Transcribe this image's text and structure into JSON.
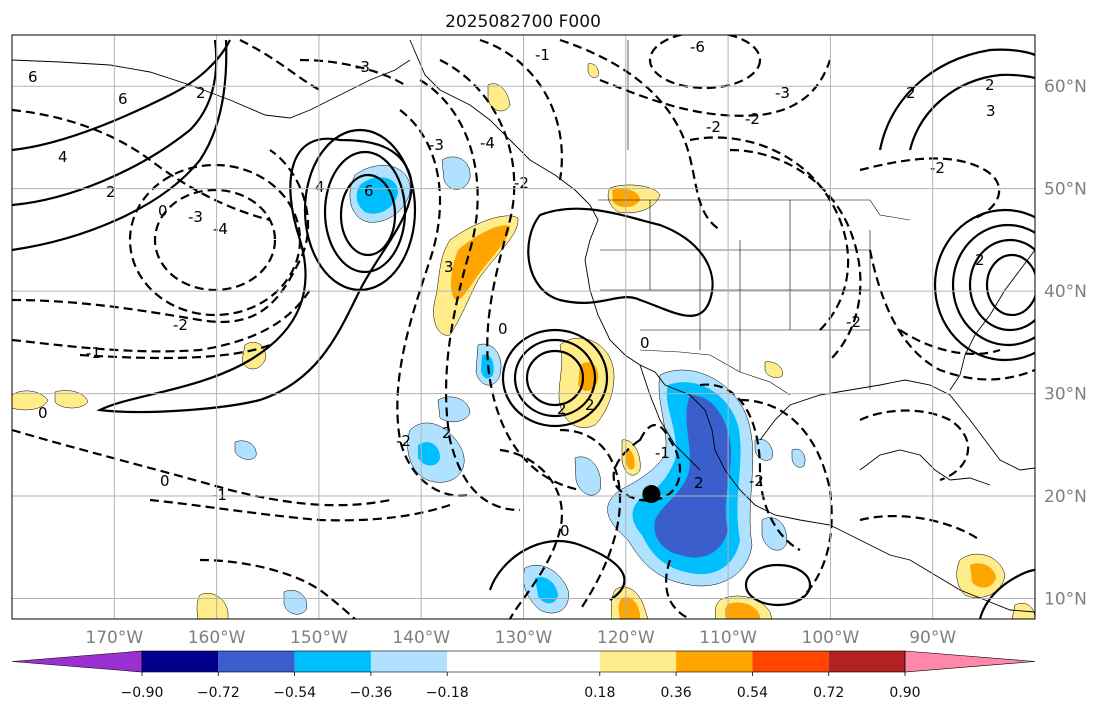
{
  "title": "2025082700 F000",
  "map": {
    "lon_min": -180,
    "lon_max": -80,
    "lat_min": 8,
    "lat_max": 65,
    "lat_ticks": [
      {
        "value": 60,
        "label": "60°N"
      },
      {
        "value": 50,
        "label": "50°N"
      },
      {
        "value": 40,
        "label": "40°N"
      },
      {
        "value": 30,
        "label": "30°N"
      },
      {
        "value": 20,
        "label": "20°N"
      },
      {
        "value": 10,
        "label": "10°N"
      }
    ],
    "lon_ticks": [
      {
        "value": -170,
        "label": "170°W"
      },
      {
        "value": -160,
        "label": "160°W"
      },
      {
        "value": -150,
        "label": "150°W"
      },
      {
        "value": -140,
        "label": "140°W"
      },
      {
        "value": -130,
        "label": "130°W"
      },
      {
        "value": -120,
        "label": "120°W"
      },
      {
        "value": -110,
        "label": "110°W"
      },
      {
        "value": -100,
        "label": "100°W"
      },
      {
        "value": -90,
        "label": "90°W"
      }
    ],
    "grid": true,
    "marker": {
      "lon": -117.5,
      "lat": 20.2,
      "color": "#000000"
    }
  },
  "colorbar": {
    "boundaries": [
      -1.08,
      -0.9,
      -0.72,
      -0.54,
      -0.36,
      -0.18,
      0.18,
      0.36,
      0.54,
      0.72,
      0.9,
      1.08
    ],
    "colors": [
      "#9b30d0",
      "#00008b",
      "#3a5fcd",
      "#00bfff",
      "#b0e2ff",
      "#ffffff",
      "#ffec8b",
      "#ffa500",
      "#ff4500",
      "#b22222",
      "#ff88aa"
    ],
    "extend": "both",
    "tick_labels": [
      "−0.90",
      "−0.72",
      "−0.54",
      "−0.36",
      "−0.18",
      "0.18",
      "0.36",
      "0.54",
      "0.72",
      "0.90"
    ]
  },
  "contour_labels": [
    "6",
    "6",
    "6",
    "4",
    "4",
    "2",
    "2",
    "2",
    "2",
    "0",
    "0",
    "0",
    "0",
    "0",
    "0",
    "-1",
    "-1",
    "-1",
    "-2",
    "-2",
    "-2",
    "-2",
    "-2",
    "-2",
    "-3",
    "-3",
    "-3",
    "-3",
    "-4",
    "-4",
    "-6",
    "2",
    "2",
    "2",
    "2",
    "3",
    "3",
    "2",
    "-1",
    "-2",
    "-2"
  ],
  "contours": {
    "solid_color": "#000000",
    "dashed_color": "#000000"
  }
}
